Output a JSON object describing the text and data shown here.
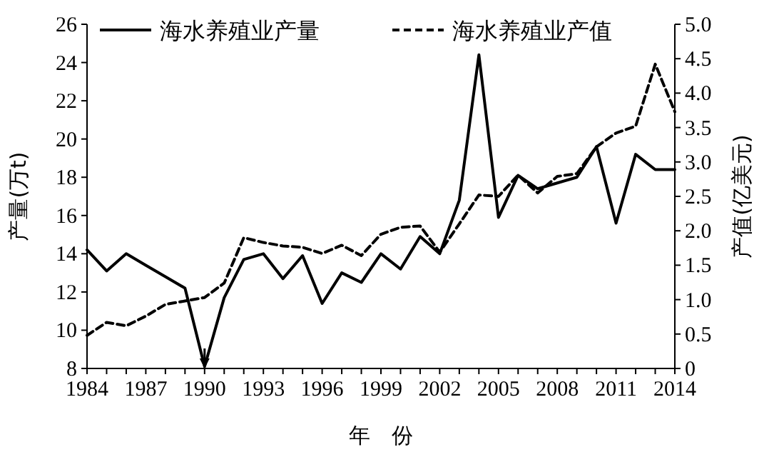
{
  "chart_data": {
    "type": "line",
    "xlabel": "年　份",
    "ylabel": "产量(万t)",
    "y2label": "产值(亿美元)",
    "x": [
      1984,
      1985,
      1986,
      1987,
      1988,
      1989,
      1990,
      1991,
      1992,
      1993,
      1994,
      1995,
      1996,
      1997,
      1998,
      1999,
      2000,
      2001,
      2002,
      2003,
      2004,
      2005,
      2006,
      2007,
      2008,
      2009,
      2010,
      2011,
      2012,
      2013,
      2014
    ],
    "series": [
      {
        "name": "海水养殖业产量",
        "color": "#000000",
        "line_style": "solid",
        "values": [
          14.2,
          13.1,
          14.0,
          13.4,
          12.8,
          12.2,
          8.1,
          11.7,
          13.7,
          14.0,
          12.7,
          13.9,
          11.4,
          13.0,
          12.5,
          14.0,
          13.2,
          14.9,
          14.0,
          16.8,
          24.4,
          15.9,
          18.1,
          17.4,
          17.7,
          18.0,
          19.6,
          15.6,
          19.2,
          18.4,
          18.4
        ]
      },
      {
        "name": "海水养殖业产值",
        "color": "#000000",
        "line_style": "dashed",
        "axis": "y2",
        "values": [
          0.48,
          0.67,
          0.62,
          0.76,
          0.93,
          0.98,
          1.03,
          1.24,
          1.9,
          1.83,
          1.78,
          1.76,
          1.67,
          1.79,
          1.64,
          1.95,
          2.05,
          2.07,
          1.69,
          2.1,
          2.52,
          2.5,
          2.81,
          2.55,
          2.79,
          2.83,
          3.22,
          3.42,
          3.52,
          4.42,
          3.73
        ]
      }
    ],
    "xlim": [
      1984,
      2014
    ],
    "xticks": [
      1984,
      {
        "value": 1985,
        "label": null
      },
      {
        "value": 1986,
        "label": null
      },
      1987,
      {
        "value": 1988,
        "label": null
      },
      {
        "value": 1989,
        "label": null
      },
      1990,
      {
        "value": 1991,
        "label": null
      },
      {
        "value": 1992,
        "label": null
      },
      1993,
      {
        "value": 1994,
        "label": null
      },
      {
        "value": 1995,
        "label": null
      },
      1996,
      {
        "value": 1997,
        "label": null
      },
      {
        "value": 1998,
        "label": null
      },
      1999,
      {
        "value": 2000,
        "label": null
      },
      {
        "value": 2001,
        "label": null
      },
      2002,
      {
        "value": 2003,
        "label": null
      },
      {
        "value": 2004,
        "label": null
      },
      2005,
      {
        "value": 2006,
        "label": null
      },
      {
        "value": 2007,
        "label": null
      },
      2008,
      {
        "value": 2009,
        "label": null
      },
      {
        "value": 2010,
        "label": null
      },
      2011,
      {
        "value": 2012,
        "label": null
      },
      {
        "value": 2013,
        "label": null
      },
      2014
    ],
    "ylim": [
      8,
      26
    ],
    "yticks": [
      8,
      10,
      12,
      14,
      16,
      18,
      20,
      22,
      24,
      26
    ],
    "y2lim": [
      0,
      5
    ],
    "y2ticks": [
      0,
      0.5,
      {
        "value": 1,
        "label": "1.0"
      },
      1.5,
      {
        "value": 2,
        "label": "2.0"
      },
      2.5,
      {
        "value": 3,
        "label": "3.0"
      },
      3.5,
      {
        "value": 4,
        "label": "4.0"
      },
      4.5,
      {
        "value": 5,
        "label": "5.0"
      }
    ],
    "legend": "top",
    "grid": false,
    "marker": "none"
  }
}
